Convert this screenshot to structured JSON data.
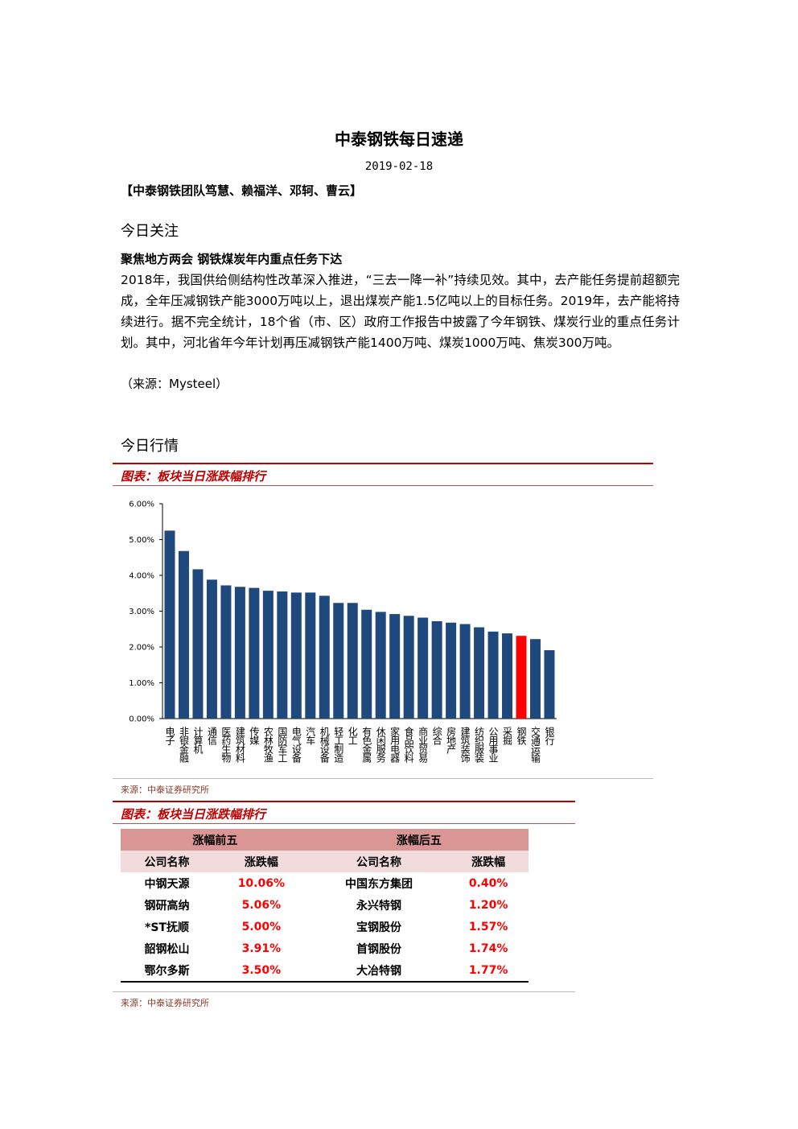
{
  "header": {
    "title": "中泰钢铁每日速递",
    "date": "2019-02-18",
    "authors": "【中泰钢铁团队笃慧、赖福洋、邓轲、曹云】"
  },
  "focus": {
    "heading": "今日关注",
    "article_title": "聚焦地方两会 钢铁煤炭年内重点任务下达",
    "body": "2018年，我国供给侧结构性改革深入推进，“三去一降一补”持续见效。其中，去产能任务提前超额完成，全年压减钢铁产能3000万吨以上，退出煤炭产能1.5亿吨以上的目标任务。2019年，去产能将持续进行。据不完全统计，18个省（市、区）政府工作报告中披露了今年钢铁、煤炭行业的重点任务计划。其中，河北省年今年计划再压减钢铁产能1400万吨、煤炭1000万吨、焦炭300万吨。",
    "source": "（来源：Mysteel）"
  },
  "market": {
    "heading": "今日行情",
    "figure1_caption": "图表：板块当日涨跌幅排行",
    "figure1_source": "来源：中泰证券研究所",
    "figure2_caption": "图表：板块当日涨跌幅排行",
    "figure2_source": "来源：中泰证券研究所"
  },
  "chart_data": {
    "type": "bar",
    "categories": [
      "电子",
      "非银金融",
      "计算机",
      "通信",
      "医药生物",
      "建筑材料",
      "传媒",
      "农林牧渔",
      "国防军工",
      "电气设备",
      "汽车",
      "机械设备",
      "轻工制造",
      "化工",
      "有色金属",
      "休闲服务",
      "家用电器",
      "食品饮料",
      "商业贸易",
      "综合",
      "房地产",
      "建筑装饰",
      "纺织服装",
      "公用事业",
      "采掘",
      "钢铁",
      "交通运输",
      "银行"
    ],
    "values": [
      5.25,
      4.68,
      4.17,
      3.88,
      3.72,
      3.68,
      3.65,
      3.57,
      3.55,
      3.52,
      3.52,
      3.43,
      3.23,
      3.23,
      3.04,
      2.98,
      2.92,
      2.87,
      2.82,
      2.72,
      2.68,
      2.64,
      2.55,
      2.43,
      2.38,
      2.31,
      2.22,
      1.91
    ],
    "colors": [
      "#1f497d",
      "#1f497d",
      "#1f497d",
      "#1f497d",
      "#1f497d",
      "#1f497d",
      "#1f497d",
      "#1f497d",
      "#1f497d",
      "#1f497d",
      "#1f497d",
      "#1f497d",
      "#1f497d",
      "#1f497d",
      "#1f497d",
      "#1f497d",
      "#1f497d",
      "#1f497d",
      "#1f497d",
      "#1f497d",
      "#1f497d",
      "#1f497d",
      "#1f497d",
      "#1f497d",
      "#1f497d",
      "#ff0000",
      "#1f497d",
      "#1f497d"
    ],
    "ylim": [
      0,
      6
    ],
    "yticks": [
      {
        "value": 0,
        "label": "0.00%"
      },
      {
        "value": 1,
        "label": "1.00%"
      },
      {
        "value": 2,
        "label": "2.00%"
      },
      {
        "value": 3,
        "label": "3.00%"
      },
      {
        "value": 4,
        "label": "4.00%"
      },
      {
        "value": 5,
        "label": "5.00%"
      },
      {
        "value": 6,
        "label": "6.00%"
      }
    ]
  },
  "table": {
    "groups": [
      "涨幅前五",
      "涨幅后五"
    ],
    "columns": [
      "公司名称",
      "涨跌幅",
      "公司名称",
      "涨跌幅"
    ],
    "rows": [
      [
        "中钢天源",
        "10.06%",
        "中国东方集团",
        "0.40%"
      ],
      [
        "钢研高纳",
        "5.06%",
        "永兴特钢",
        "1.20%"
      ],
      [
        "*ST抚顺",
        "5.00%",
        "宝钢股份",
        "1.57%"
      ],
      [
        "韶钢松山",
        "3.91%",
        "首钢股份",
        "1.74%"
      ],
      [
        "鄂尔多斯",
        "3.50%",
        "大冶特钢",
        "1.77%"
      ]
    ]
  }
}
